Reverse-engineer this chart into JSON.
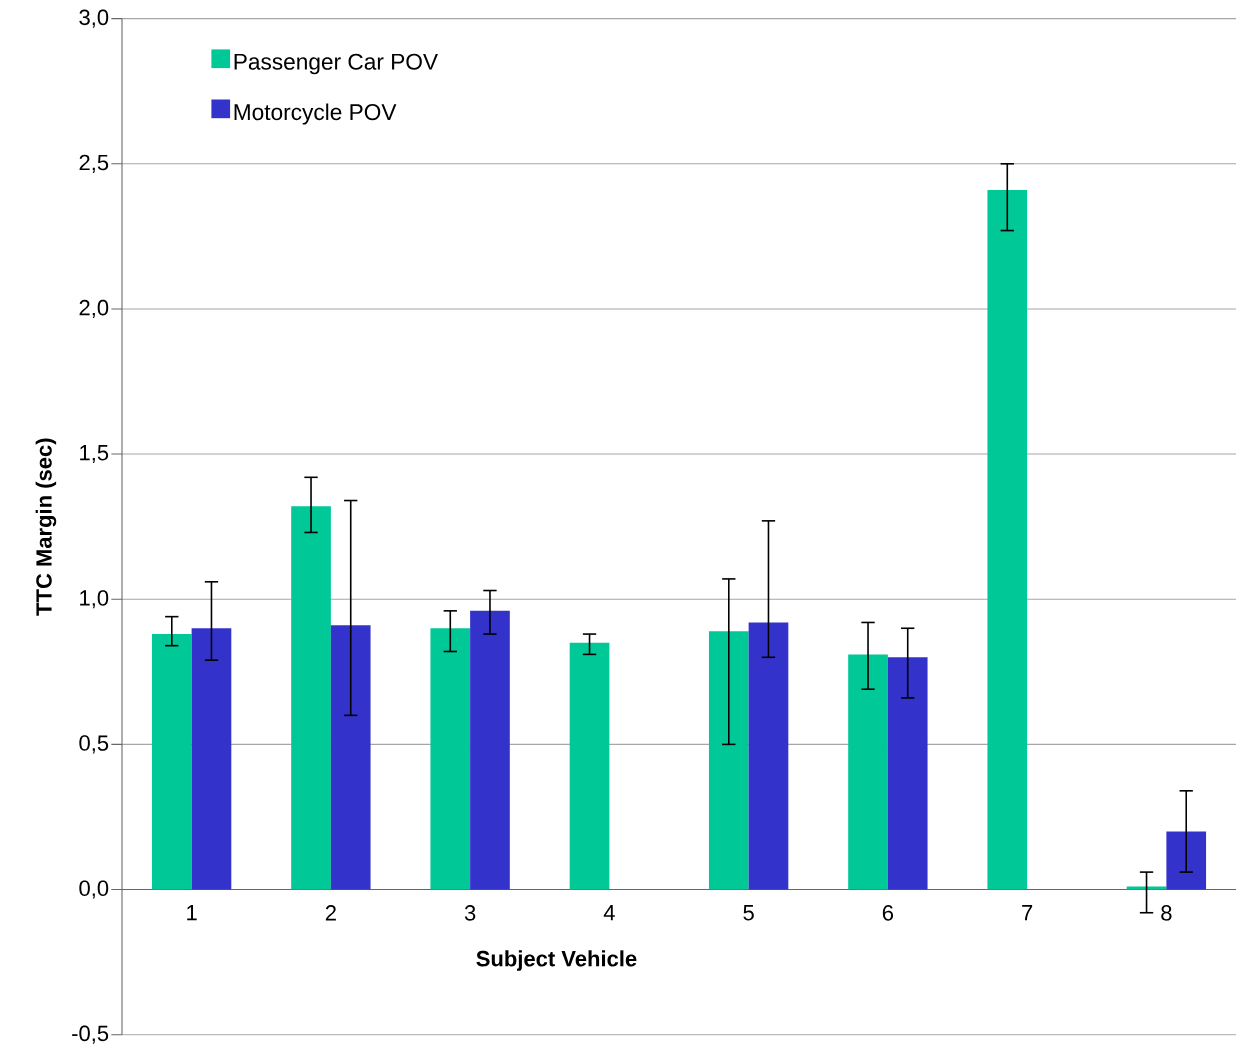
{
  "chart_data": {
    "type": "bar",
    "xlabel": "Subject Vehicle",
    "ylabel": "TTC Margin (sec)",
    "categories": [
      "1",
      "2",
      "3",
      "4",
      "5",
      "6",
      "7",
      "8"
    ],
    "series": [
      {
        "name": "Passenger Car POV",
        "color": "#00c896",
        "values": [
          0.88,
          1.32,
          0.9,
          0.85,
          0.89,
          0.81,
          2.41,
          0.01
        ],
        "errors": [
          [
            0.84,
            0.94
          ],
          [
            1.23,
            1.42
          ],
          [
            0.82,
            0.96
          ],
          [
            0.81,
            0.88
          ],
          [
            0.5,
            1.07
          ],
          [
            0.69,
            0.92
          ],
          [
            2.27,
            2.5
          ],
          [
            -0.08,
            0.06
          ]
        ]
      },
      {
        "name": "Motorcycle POV",
        "color": "#3333cc",
        "values": [
          0.9,
          0.91,
          0.96,
          null,
          0.92,
          0.8,
          null,
          0.2
        ],
        "errors": [
          [
            0.79,
            1.06
          ],
          [
            0.6,
            1.34
          ],
          [
            0.88,
            1.03
          ],
          null,
          [
            0.8,
            1.27
          ],
          [
            0.66,
            0.9
          ],
          null,
          [
            0.06,
            0.34
          ]
        ]
      }
    ],
    "ylim": [
      -0.5,
      3.0
    ],
    "yticks": [
      {
        "value": -0.5,
        "label": "-0,5"
      },
      {
        "value": 0,
        "label": "0,0"
      },
      {
        "value": 0.5,
        "label": "0,5"
      },
      {
        "value": 1.0,
        "label": "1,0"
      },
      {
        "value": 1.5,
        "label": "1,5"
      },
      {
        "value": 2.0,
        "label": "2,0"
      },
      {
        "value": 2.5,
        "label": "2,5"
      },
      {
        "value": 3.0,
        "label": "3,0"
      }
    ],
    "grid": "y",
    "legend": "top left"
  }
}
